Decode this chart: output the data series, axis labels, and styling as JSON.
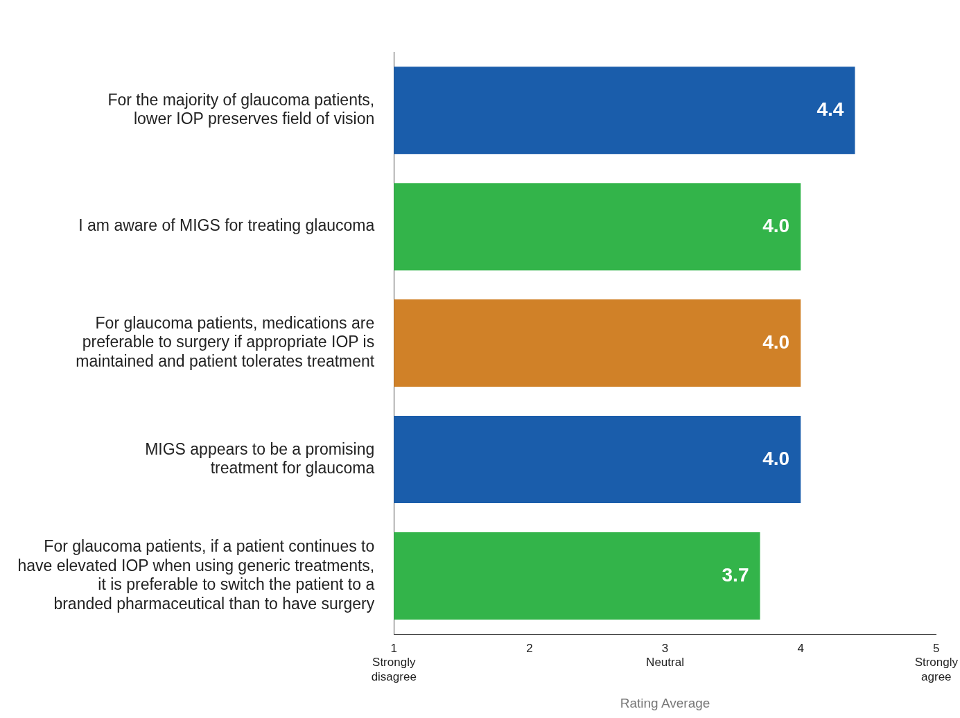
{
  "chart_data": {
    "type": "bar",
    "orientation": "horizontal",
    "categories": [
      "For the majority of glaucoma patients,\nlower IOP preserves field of vision",
      "I am aware of MIGS for treating glaucoma",
      "For glaucoma patients, medications are\npreferable to surgery if appropriate IOP is\nmaintained and patient tolerates treatment",
      "MIGS appears to be a promising\ntreatment for glaucoma",
      "For glaucoma patients, if a patient continues to\nhave elevated IOP when using generic treatments,\nit is preferable to switch the patient to a\nbranded pharmaceutical than to have surgery"
    ],
    "values": [
      4.4,
      4.0,
      4.0,
      4.0,
      3.7
    ],
    "colors": [
      "#1a5dab",
      "#33b44a",
      "#d08128",
      "#1a5dab",
      "#33b44a"
    ],
    "value_labels": [
      "4.4",
      "4.0",
      "4.0",
      "4.0",
      "3.7"
    ],
    "xlim": [
      1,
      5
    ],
    "xticks": [
      {
        "value": 1,
        "label": "1\nStrongly\ndisagree"
      },
      2,
      {
        "value": 3,
        "label": "3\nNeutral"
      },
      4,
      {
        "value": 5,
        "label": "5\nStrongly\nagree"
      }
    ],
    "xlabel": "Rating Average",
    "grid": false,
    "legend": false
  }
}
